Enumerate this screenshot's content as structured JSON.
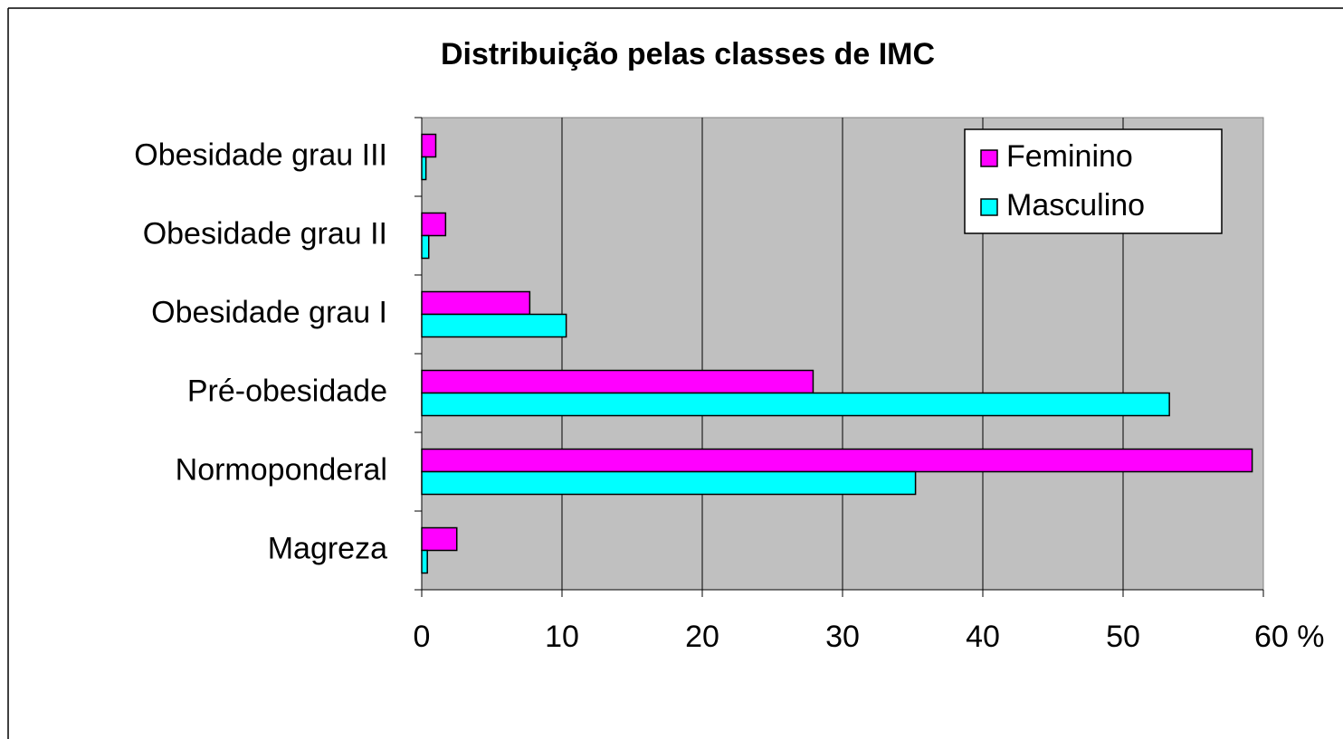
{
  "chart_data": {
    "type": "bar",
    "orientation": "horizontal",
    "title": "Distribuição pelas classes de IMC",
    "categories": [
      "Magreza",
      "Normoponderal",
      "Pré-obesidade",
      "Obesidade grau I",
      "Obesidade grau II",
      "Obesidade grau III"
    ],
    "series": [
      {
        "name": "Feminino",
        "color": "#ff00ff",
        "values": [
          2.5,
          59.2,
          27.9,
          7.7,
          1.7,
          1.0
        ]
      },
      {
        "name": "Masculino",
        "color": "#00ffff",
        "values": [
          0.4,
          35.2,
          53.3,
          10.3,
          0.5,
          0.3
        ]
      }
    ],
    "xlim": [
      0,
      60
    ],
    "xticks": [
      0,
      10,
      20,
      30,
      40,
      50,
      {
        "value": 60,
        "label": "60 %"
      }
    ],
    "grid": true,
    "legend": "top-right",
    "title_color": "#008000",
    "plot_background": "#c0c0c0"
  }
}
